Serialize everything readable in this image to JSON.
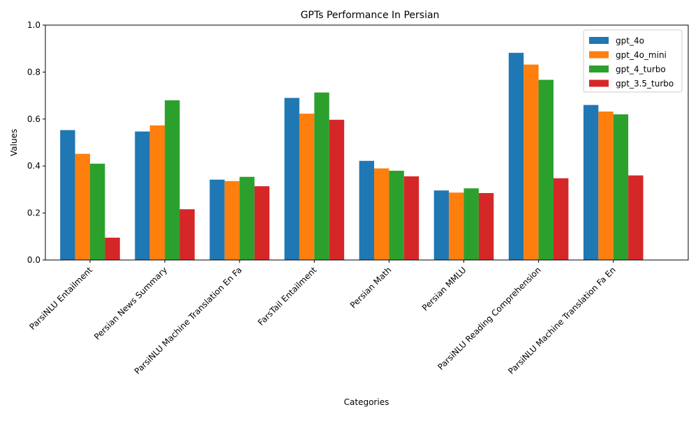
{
  "chart_data": {
    "type": "bar",
    "title": "GPTs Performance In Persian",
    "xlabel": "Categories",
    "ylabel": "Values",
    "ylim": [
      0,
      1.0
    ],
    "yticks": [
      "0.0",
      "0.2",
      "0.4",
      "0.6",
      "0.8",
      "1.0"
    ],
    "grid": false,
    "legend_position": "top-right",
    "categories": [
      "ParsiNLU Entailment",
      "Persian News Summary",
      "ParsiNLU Machine Translation En Fa",
      "FarsTail Entailment",
      "Persian Math",
      "Persian MMLU",
      "ParsiNLU Reading Comprehension",
      "ParsiNLU Machine Translation Fa En"
    ],
    "series": [
      {
        "name": "gpt_4o",
        "color": "#1f77b4",
        "values": [
          0.553,
          0.547,
          0.342,
          0.69,
          0.422,
          0.296,
          0.882,
          0.66
        ]
      },
      {
        "name": "gpt_4o_mini",
        "color": "#ff7f0e",
        "values": [
          0.452,
          0.573,
          0.336,
          0.623,
          0.39,
          0.287,
          0.832,
          0.632
        ]
      },
      {
        "name": "gpt_4_turbo",
        "color": "#2ca02c",
        "values": [
          0.41,
          0.68,
          0.354,
          0.713,
          0.38,
          0.305,
          0.767,
          0.62
        ]
      },
      {
        "name": "gpt_3.5_turbo",
        "color": "#d62728",
        "values": [
          0.095,
          0.216,
          0.314,
          0.597,
          0.356,
          0.285,
          0.348,
          0.36
        ]
      }
    ]
  }
}
